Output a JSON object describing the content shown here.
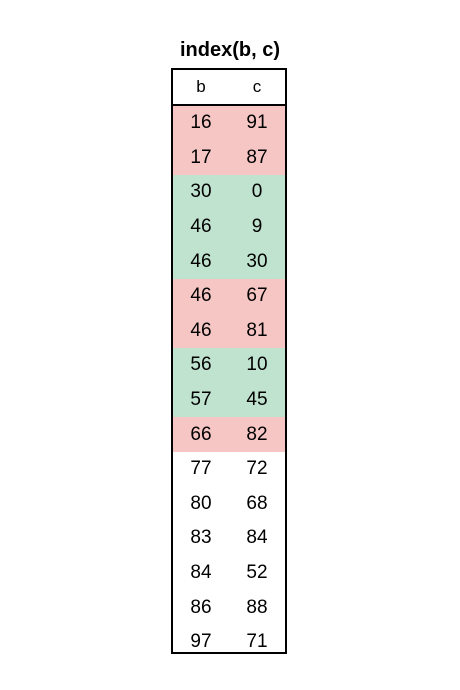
{
  "title": "index(b, c)",
  "columns": [
    "b",
    "c"
  ],
  "colors": {
    "red": "#f5c6c3",
    "green": "#bfe3cf",
    "none": "#ffffff"
  },
  "rows": [
    {
      "b": "16",
      "c": "91",
      "highlight": "red"
    },
    {
      "b": "17",
      "c": "87",
      "highlight": "red"
    },
    {
      "b": "30",
      "c": "0",
      "highlight": "green"
    },
    {
      "b": "46",
      "c": "9",
      "highlight": "green"
    },
    {
      "b": "46",
      "c": "30",
      "highlight": "green"
    },
    {
      "b": "46",
      "c": "67",
      "highlight": "red"
    },
    {
      "b": "46",
      "c": "81",
      "highlight": "red"
    },
    {
      "b": "56",
      "c": "10",
      "highlight": "green"
    },
    {
      "b": "57",
      "c": "45",
      "highlight": "green"
    },
    {
      "b": "66",
      "c": "82",
      "highlight": "red"
    },
    {
      "b": "77",
      "c": "72",
      "highlight": "none"
    },
    {
      "b": "80",
      "c": "68",
      "highlight": "none"
    },
    {
      "b": "83",
      "c": "84",
      "highlight": "none"
    },
    {
      "b": "84",
      "c": "52",
      "highlight": "none"
    },
    {
      "b": "86",
      "c": "88",
      "highlight": "none"
    },
    {
      "b": "97",
      "c": "71",
      "highlight": "none"
    }
  ]
}
